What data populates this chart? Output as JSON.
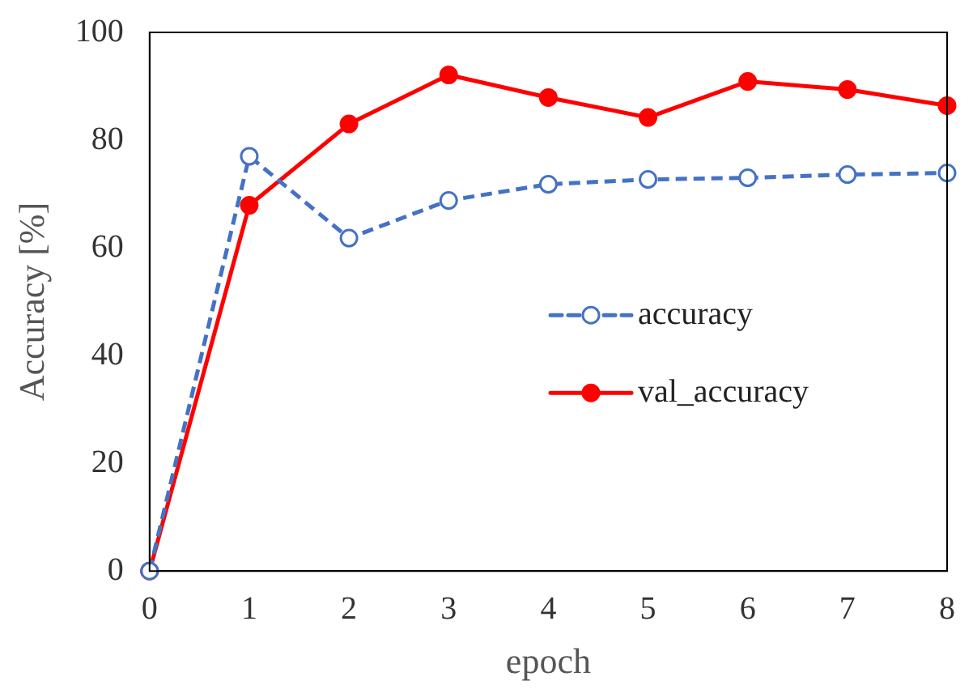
{
  "chart_data": {
    "type": "line",
    "xlabel": "epoch",
    "ylabel": "Accuracy [%]",
    "x": [
      0,
      1,
      2,
      3,
      4,
      5,
      6,
      7,
      8
    ],
    "series": [
      {
        "name": "accuracy",
        "color": "#4472c4",
        "line_style": "dashed",
        "marker": "circle",
        "values": [
          0,
          77,
          61.8,
          68.8,
          71.8,
          72.7,
          73,
          73.6,
          73.9
        ]
      },
      {
        "name": "val_accuracy",
        "color": "#ff0000",
        "line_style": "solid",
        "marker": "circle",
        "values": [
          0,
          67.9,
          83,
          92.1,
          87.9,
          84.2,
          90.9,
          89.4,
          86.4
        ]
      }
    ],
    "xlim": [
      0,
      8
    ],
    "xticks": [
      0,
      1,
      2,
      3,
      4,
      5,
      6,
      7,
      8
    ],
    "ylim": [
      0,
      100
    ],
    "yticks": [
      0,
      20,
      40,
      60,
      80,
      100
    ],
    "grid": false,
    "legend": "bottom right"
  }
}
